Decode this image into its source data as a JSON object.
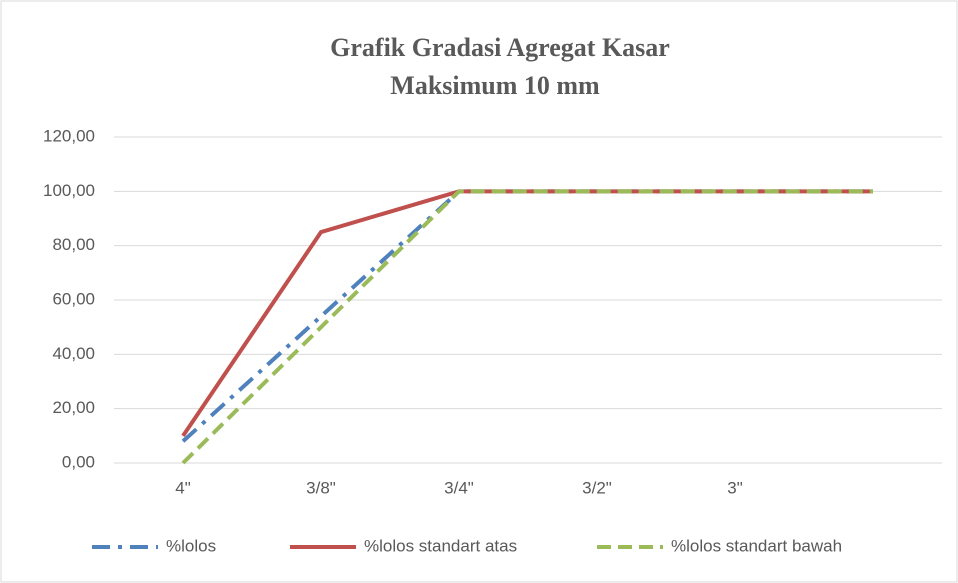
{
  "chart_data": {
    "type": "line",
    "title": [
      "Grafik Gradasi Agregat Kasar",
      "Maksimum 10 mm"
    ],
    "categories": [
      "4\"",
      "3/8\"",
      "3/4\"",
      "3/2\"",
      "3\"",
      null
    ],
    "series": [
      {
        "name": "%lolos",
        "color": "#4f81bd",
        "dash": "dash-dot",
        "values": [
          8,
          54,
          100,
          100,
          100,
          100
        ]
      },
      {
        "name": "%lolos standart atas",
        "color": "#c0504d",
        "dash": "solid",
        "values": [
          10,
          85,
          100,
          100,
          100,
          100
        ]
      },
      {
        "name": "%lolos standart bawah",
        "color": "#9bbb59",
        "dash": "dashed",
        "values": [
          0,
          50,
          100,
          100,
          100,
          100
        ]
      }
    ],
    "ylim": [
      0,
      120
    ],
    "yticks": [
      {
        "value": 0,
        "label": "0,00"
      },
      {
        "value": 20,
        "label": "20,00"
      },
      {
        "value": 40,
        "label": "40,00"
      },
      {
        "value": 60,
        "label": "60,00"
      },
      {
        "value": 80,
        "label": "80,00"
      },
      {
        "value": 100,
        "label": "100,00"
      },
      {
        "value": 120,
        "label": "120,00"
      }
    ],
    "grid": true,
    "legend": "bottom"
  }
}
